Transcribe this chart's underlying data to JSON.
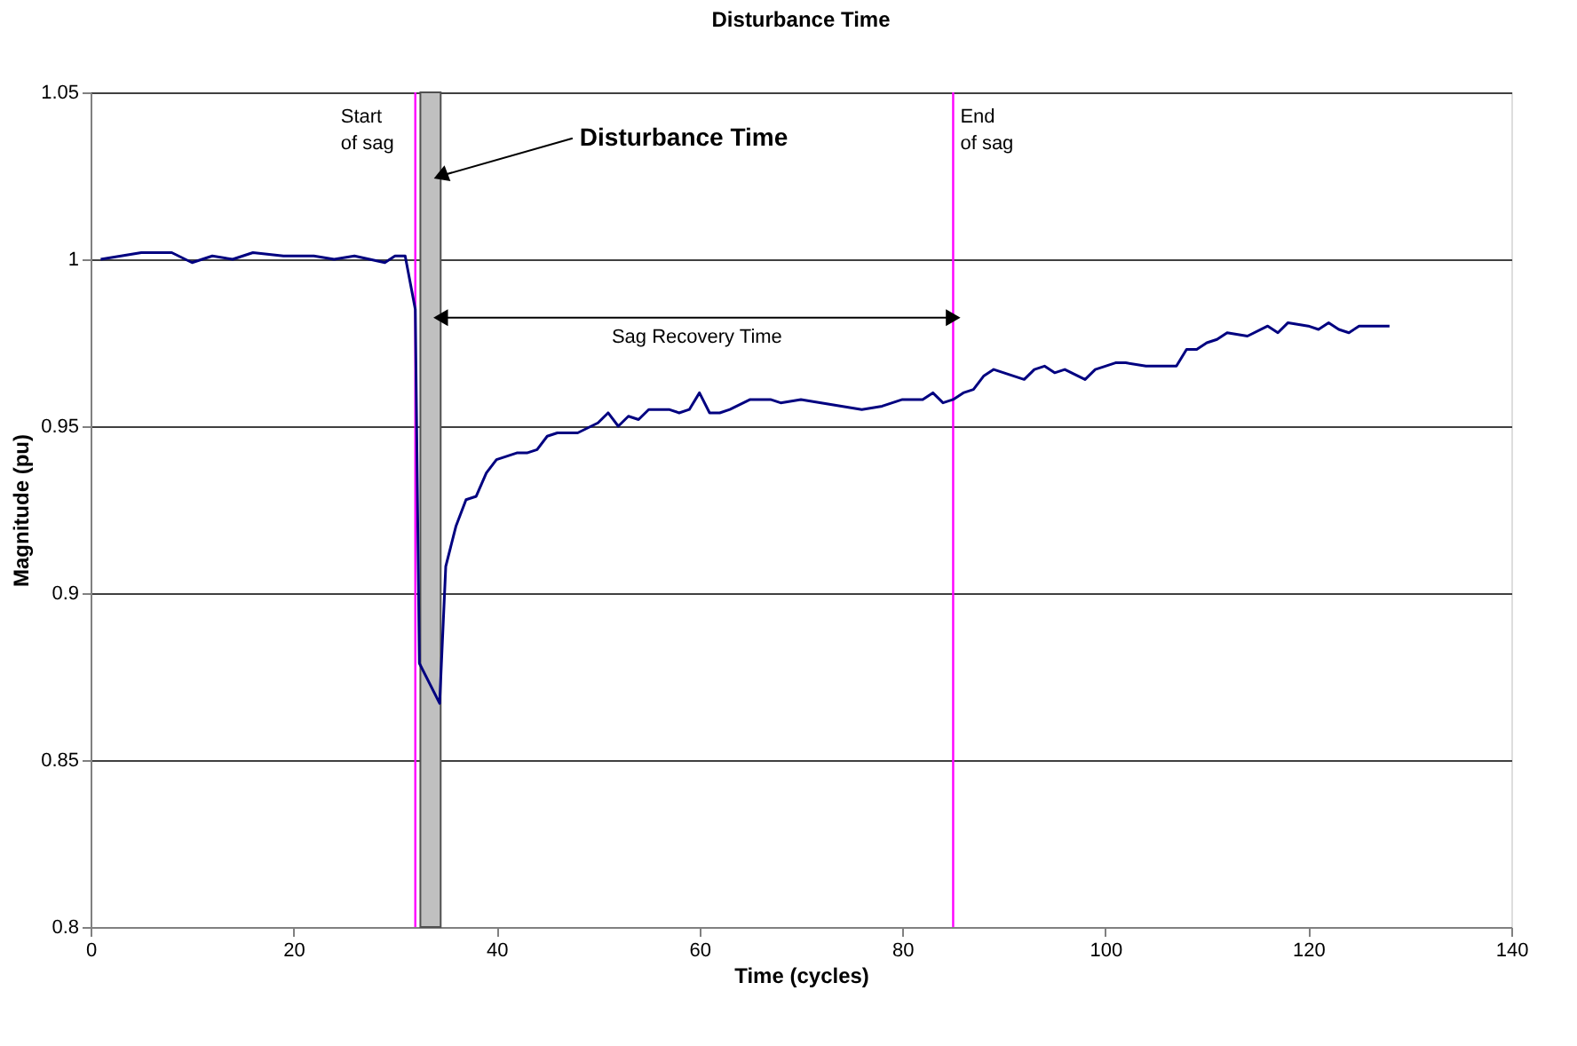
{
  "chart_data": {
    "type": "line",
    "title": "Disturbance Time",
    "xlabel": "Time (cycles)",
    "ylabel": "Magnitude (pu)",
    "x": [
      1,
      3,
      5,
      8,
      10,
      12,
      14,
      16,
      19,
      22,
      24,
      26,
      29,
      30,
      31,
      32,
      32.4,
      34.4,
      35,
      36,
      37,
      38,
      39,
      40,
      41,
      42,
      43,
      44,
      45,
      46,
      48,
      50,
      51,
      52,
      53,
      54,
      55,
      57,
      58,
      59,
      60,
      61,
      62,
      63,
      65,
      67,
      68,
      70,
      72,
      74,
      76,
      78,
      80,
      82,
      83,
      84,
      85,
      86,
      87,
      88,
      89,
      91,
      92,
      93,
      94,
      95,
      96,
      98,
      99,
      100,
      101,
      102,
      104,
      105,
      107,
      108,
      109,
      110,
      111,
      112,
      114,
      116,
      117,
      118,
      120,
      121,
      122,
      123,
      124,
      125,
      128
    ],
    "series": [
      {
        "color": "#000080",
        "values": [
          1.0,
          1.001,
          1.002,
          1.002,
          0.999,
          1.001,
          1.0,
          1.002,
          1.001,
          1.001,
          1.0,
          1.001,
          0.999,
          1.001,
          1.001,
          0.985,
          0.879,
          0.867,
          0.908,
          0.92,
          0.928,
          0.929,
          0.936,
          0.94,
          0.941,
          0.942,
          0.942,
          0.943,
          0.947,
          0.948,
          0.948,
          0.951,
          0.954,
          0.95,
          0.953,
          0.952,
          0.955,
          0.955,
          0.954,
          0.955,
          0.96,
          0.954,
          0.954,
          0.955,
          0.958,
          0.958,
          0.957,
          0.958,
          0.957,
          0.956,
          0.955,
          0.956,
          0.958,
          0.958,
          0.96,
          0.957,
          0.958,
          0.96,
          0.961,
          0.965,
          0.967,
          0.965,
          0.964,
          0.967,
          0.968,
          0.966,
          0.967,
          0.964,
          0.967,
          0.968,
          0.969,
          0.969,
          0.968,
          0.968,
          0.968,
          0.973,
          0.973,
          0.975,
          0.976,
          0.978,
          0.977,
          0.98,
          0.978,
          0.981,
          0.98,
          0.979,
          0.981,
          0.979,
          0.978,
          0.98,
          0.98
        ]
      }
    ],
    "xlim": [
      0,
      140
    ],
    "xticks": [
      0,
      20,
      40,
      60,
      80,
      100,
      120,
      140
    ],
    "ylim": [
      0.8,
      1.05
    ],
    "yticks": [
      0.8,
      0.85,
      0.9,
      0.95,
      1,
      1.05
    ],
    "grid": "y",
    "marker": "none",
    "line_style": "solid",
    "ref_lines": [
      {
        "axis": "x",
        "value": 32,
        "label": "Start of sag",
        "color": "#ff00ff"
      },
      {
        "axis": "x",
        "value": 85,
        "label": "End of sag",
        "color": "#ff00ff"
      }
    ],
    "bands": [
      {
        "axis": "x",
        "from": 32.5,
        "to": 34.5,
        "label": "Disturbance Time",
        "color": "#c0c0c0"
      }
    ],
    "annotations": [
      "Sag Recovery Time"
    ]
  }
}
